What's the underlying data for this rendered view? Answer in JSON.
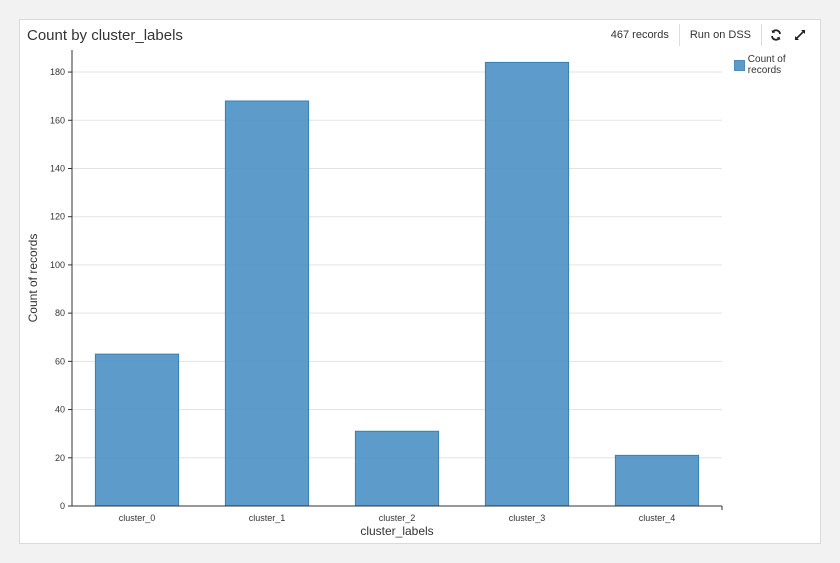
{
  "header": {
    "title": "Count by cluster_labels",
    "records": "467 records",
    "run_label": "Run on DSS",
    "refresh_icon": "refresh-icon",
    "expand_icon": "expand-icon"
  },
  "legend": {
    "label": "Count of records",
    "color": "#4a90c4"
  },
  "chart_data": {
    "type": "bar",
    "categories": [
      "cluster_0",
      "cluster_1",
      "cluster_2",
      "cluster_3",
      "cluster_4"
    ],
    "series": [
      {
        "name": "Count of records",
        "values": [
          63,
          168,
          31,
          184,
          21
        ]
      }
    ],
    "xlabel": "cluster_labels",
    "ylabel": "Count of records",
    "ylim": [
      0,
      185
    ],
    "yticks": [
      0,
      20,
      40,
      60,
      80,
      100,
      120,
      140,
      160,
      180
    ],
    "grid": true,
    "legend_position": "top-right",
    "bar_color": "#4a90c4"
  }
}
